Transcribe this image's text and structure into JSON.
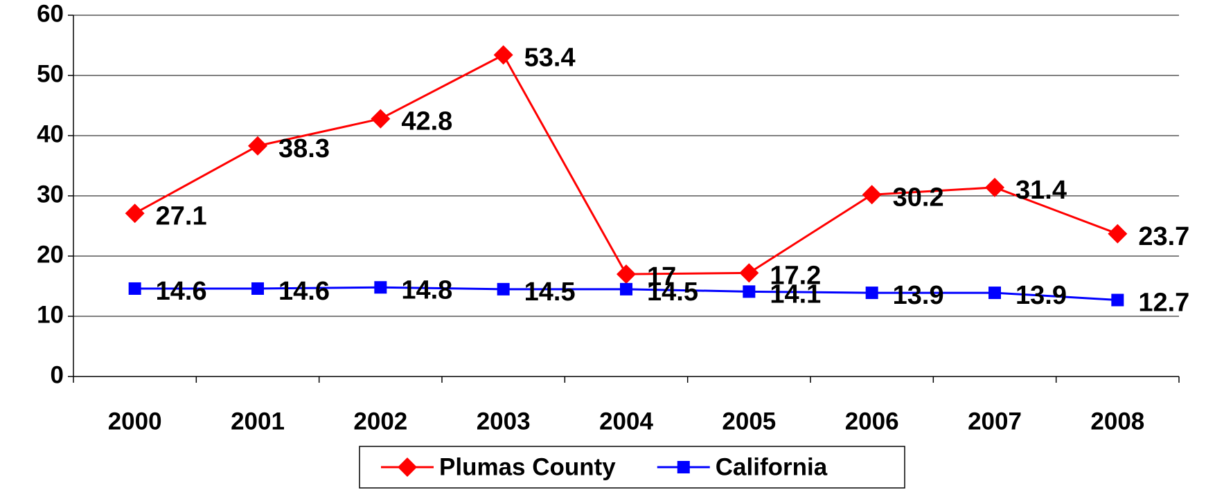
{
  "chart_data": {
    "type": "line",
    "categories": [
      "2000",
      "2001",
      "2002",
      "2003",
      "2004",
      "2005",
      "2006",
      "2007",
      "2008"
    ],
    "series": [
      {
        "name": "Plumas County",
        "color": "#ff0000",
        "marker": "diamond",
        "values": [
          27.1,
          38.3,
          42.8,
          53.4,
          17,
          17.2,
          30.2,
          31.4,
          23.7
        ]
      },
      {
        "name": "California",
        "color": "#0000ff",
        "marker": "square",
        "values": [
          14.6,
          14.6,
          14.8,
          14.5,
          14.5,
          14.1,
          13.9,
          13.9,
          12.7
        ]
      }
    ],
    "ylim": [
      0,
      60
    ],
    "yticks": [
      0,
      10,
      20,
      30,
      40,
      50,
      60
    ],
    "grid": true,
    "legend": "bottom"
  }
}
